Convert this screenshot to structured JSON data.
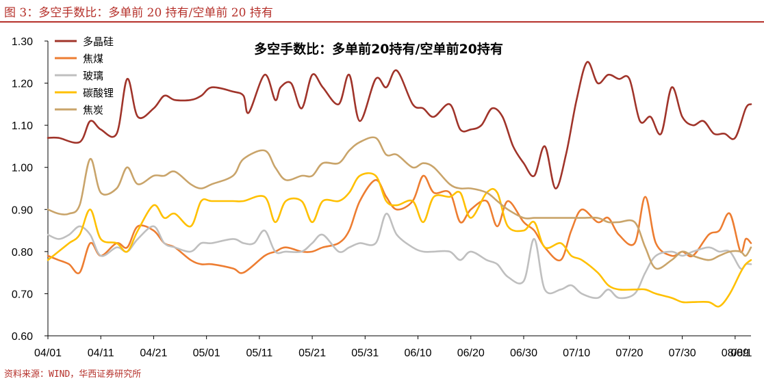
{
  "caption": "图 3：多空手数比：多单前 20 持有/空单前 20 持有",
  "source": "资料来源：WIND，华西证券研究所",
  "chart_data": {
    "type": "line",
    "title": "多空手数比：多单前20持有/空单前20持有",
    "x_tick_labels": [
      "04/01",
      "04/11",
      "04/21",
      "05/01",
      "05/11",
      "05/21",
      "05/31",
      "06/10",
      "06/20",
      "06/30",
      "07/10",
      "07/20",
      "07/30",
      "08/09",
      "08/1"
    ],
    "x_range": [
      "2025-04-01",
      "2025-08-12"
    ],
    "y_ticks": [
      "0.60",
      "0.70",
      "0.80",
      "0.90",
      "1.00",
      "1.10",
      "1.20",
      "1.30"
    ],
    "ylim": [
      0.6,
      1.3
    ],
    "grid": false,
    "legend_position": "top-left",
    "series": [
      {
        "name": "多晶硅",
        "color": "#a0342a",
        "x": [
          "2025-04-01",
          "2025-04-03",
          "2025-04-07",
          "2025-04-09",
          "2025-04-11",
          "2025-04-14",
          "2025-04-16",
          "2025-04-18",
          "2025-04-21",
          "2025-04-23",
          "2025-04-25",
          "2025-04-28",
          "2025-04-30",
          "2025-05-02",
          "2025-05-06",
          "2025-05-08",
          "2025-05-09",
          "2025-05-12",
          "2025-05-14",
          "2025-05-15",
          "2025-05-17",
          "2025-05-19",
          "2025-05-21",
          "2025-05-23",
          "2025-05-26",
          "2025-05-28",
          "2025-05-30",
          "2025-06-02",
          "2025-06-04",
          "2025-06-06",
          "2025-06-09",
          "2025-06-11",
          "2025-06-13",
          "2025-06-16",
          "2025-06-18",
          "2025-06-20",
          "2025-06-22",
          "2025-06-24",
          "2025-06-26",
          "2025-06-28",
          "2025-06-30",
          "2025-07-02",
          "2025-07-04",
          "2025-07-06",
          "2025-07-08",
          "2025-07-10",
          "2025-07-12",
          "2025-07-14",
          "2025-07-16",
          "2025-07-18",
          "2025-07-20",
          "2025-07-22",
          "2025-07-24",
          "2025-07-26",
          "2025-07-28",
          "2025-07-30",
          "2025-08-01",
          "2025-08-03",
          "2025-08-05",
          "2025-08-07",
          "2025-08-09",
          "2025-08-11",
          "2025-08-12"
        ],
        "y": [
          1.07,
          1.07,
          1.06,
          1.11,
          1.09,
          1.08,
          1.21,
          1.12,
          1.14,
          1.17,
          1.16,
          1.16,
          1.17,
          1.19,
          1.18,
          1.17,
          1.13,
          1.22,
          1.16,
          1.19,
          1.2,
          1.14,
          1.22,
          1.19,
          1.15,
          1.22,
          1.11,
          1.21,
          1.19,
          1.23,
          1.15,
          1.14,
          1.12,
          1.15,
          1.09,
          1.09,
          1.1,
          1.14,
          1.12,
          1.05,
          1.01,
          0.98,
          1.05,
          0.95,
          1.03,
          1.16,
          1.25,
          1.2,
          1.22,
          1.21,
          1.21,
          1.11,
          1.12,
          1.08,
          1.19,
          1.12,
          1.1,
          1.11,
          1.08,
          1.08,
          1.07,
          1.14,
          1.15
        ]
      },
      {
        "name": "焦煤",
        "color": "#ed7d31",
        "x": [
          "2025-04-01",
          "2025-04-03",
          "2025-04-05",
          "2025-04-07",
          "2025-04-09",
          "2025-04-11",
          "2025-04-14",
          "2025-04-16",
          "2025-04-18",
          "2025-04-21",
          "2025-04-23",
          "2025-04-25",
          "2025-04-28",
          "2025-04-30",
          "2025-05-02",
          "2025-05-06",
          "2025-05-08",
          "2025-05-12",
          "2025-05-14",
          "2025-05-16",
          "2025-05-19",
          "2025-05-21",
          "2025-05-23",
          "2025-05-26",
          "2025-05-28",
          "2025-05-30",
          "2025-06-02",
          "2025-06-04",
          "2025-06-06",
          "2025-06-09",
          "2025-06-11",
          "2025-06-13",
          "2025-06-16",
          "2025-06-18",
          "2025-06-20",
          "2025-06-23",
          "2025-06-25",
          "2025-06-27",
          "2025-06-30",
          "2025-07-02",
          "2025-07-04",
          "2025-07-07",
          "2025-07-09",
          "2025-07-11",
          "2025-07-14",
          "2025-07-16",
          "2025-07-18",
          "2025-07-21",
          "2025-07-23",
          "2025-07-25",
          "2025-07-28",
          "2025-07-30",
          "2025-08-01",
          "2025-08-04",
          "2025-08-06",
          "2025-08-08",
          "2025-08-10",
          "2025-08-11",
          "2025-08-12"
        ],
        "y": [
          0.79,
          0.78,
          0.77,
          0.75,
          0.82,
          0.79,
          0.82,
          0.81,
          0.86,
          0.85,
          0.82,
          0.81,
          0.78,
          0.77,
          0.77,
          0.76,
          0.75,
          0.79,
          0.8,
          0.81,
          0.8,
          0.8,
          0.81,
          0.82,
          0.85,
          0.92,
          0.97,
          0.93,
          0.9,
          0.92,
          0.98,
          0.94,
          0.94,
          0.87,
          0.9,
          0.92,
          0.86,
          0.92,
          0.87,
          0.85,
          0.81,
          0.78,
          0.85,
          0.9,
          0.87,
          0.88,
          0.84,
          0.82,
          0.93,
          0.82,
          0.79,
          0.8,
          0.79,
          0.84,
          0.85,
          0.89,
          0.8,
          0.83,
          0.82
        ]
      },
      {
        "name": "玻璃",
        "color": "#bfbfbf",
        "x": [
          "2025-04-01",
          "2025-04-03",
          "2025-04-05",
          "2025-04-07",
          "2025-04-09",
          "2025-04-11",
          "2025-04-14",
          "2025-04-16",
          "2025-04-18",
          "2025-04-21",
          "2025-04-23",
          "2025-04-25",
          "2025-04-28",
          "2025-04-30",
          "2025-05-02",
          "2025-05-06",
          "2025-05-08",
          "2025-05-10",
          "2025-05-12",
          "2025-05-14",
          "2025-05-16",
          "2025-05-19",
          "2025-05-21",
          "2025-05-23",
          "2025-05-26",
          "2025-05-28",
          "2025-05-30",
          "2025-06-02",
          "2025-06-04",
          "2025-06-06",
          "2025-06-09",
          "2025-06-11",
          "2025-06-13",
          "2025-06-16",
          "2025-06-18",
          "2025-06-20",
          "2025-06-23",
          "2025-06-25",
          "2025-06-27",
          "2025-06-30",
          "2025-07-02",
          "2025-07-04",
          "2025-07-07",
          "2025-07-09",
          "2025-07-11",
          "2025-07-14",
          "2025-07-16",
          "2025-07-18",
          "2025-07-21",
          "2025-07-23",
          "2025-07-25",
          "2025-07-28",
          "2025-07-30",
          "2025-08-01",
          "2025-08-04",
          "2025-08-06",
          "2025-08-08",
          "2025-08-10",
          "2025-08-11",
          "2025-08-12"
        ],
        "y": [
          0.84,
          0.83,
          0.84,
          0.86,
          0.84,
          0.79,
          0.81,
          0.8,
          0.83,
          0.86,
          0.82,
          0.81,
          0.8,
          0.82,
          0.82,
          0.83,
          0.82,
          0.82,
          0.85,
          0.8,
          0.8,
          0.8,
          0.82,
          0.84,
          0.8,
          0.81,
          0.82,
          0.82,
          0.89,
          0.84,
          0.81,
          0.8,
          0.8,
          0.8,
          0.78,
          0.8,
          0.78,
          0.77,
          0.74,
          0.73,
          0.83,
          0.71,
          0.71,
          0.72,
          0.7,
          0.69,
          0.71,
          0.69,
          0.7,
          0.75,
          0.79,
          0.8,
          0.79,
          0.8,
          0.81,
          0.8,
          0.8,
          0.76,
          0.77,
          0.77
        ]
      },
      {
        "name": "碳酸锂",
        "color": "#ffc000",
        "x": [
          "2025-04-01",
          "2025-04-03",
          "2025-04-05",
          "2025-04-07",
          "2025-04-09",
          "2025-04-11",
          "2025-04-14",
          "2025-04-16",
          "2025-04-18",
          "2025-04-21",
          "2025-04-23",
          "2025-04-25",
          "2025-04-28",
          "2025-04-30",
          "2025-05-02",
          "2025-05-06",
          "2025-05-08",
          "2025-05-12",
          "2025-05-14",
          "2025-05-16",
          "2025-05-19",
          "2025-05-21",
          "2025-05-23",
          "2025-05-26",
          "2025-05-28",
          "2025-05-30",
          "2025-06-02",
          "2025-06-04",
          "2025-06-06",
          "2025-06-09",
          "2025-06-11",
          "2025-06-13",
          "2025-06-16",
          "2025-06-18",
          "2025-06-20",
          "2025-06-23",
          "2025-06-25",
          "2025-06-27",
          "2025-06-30",
          "2025-07-02",
          "2025-07-04",
          "2025-07-07",
          "2025-07-09",
          "2025-07-11",
          "2025-07-14",
          "2025-07-16",
          "2025-07-18",
          "2025-07-21",
          "2025-07-23",
          "2025-07-25",
          "2025-07-28",
          "2025-07-30",
          "2025-08-01",
          "2025-08-04",
          "2025-08-06",
          "2025-08-08",
          "2025-08-10",
          "2025-08-11",
          "2025-08-12"
        ],
        "y": [
          0.78,
          0.8,
          0.82,
          0.84,
          0.9,
          0.83,
          0.82,
          0.8,
          0.85,
          0.91,
          0.88,
          0.89,
          0.86,
          0.92,
          0.92,
          0.92,
          0.92,
          0.93,
          0.87,
          0.92,
          0.92,
          0.87,
          0.92,
          0.92,
          0.94,
          0.98,
          0.98,
          0.92,
          0.91,
          0.92,
          0.87,
          0.93,
          0.93,
          0.94,
          0.88,
          0.94,
          0.94,
          0.86,
          0.85,
          0.87,
          0.81,
          0.82,
          0.79,
          0.78,
          0.75,
          0.72,
          0.71,
          0.71,
          0.71,
          0.7,
          0.69,
          0.68,
          0.68,
          0.68,
          0.67,
          0.7,
          0.75,
          0.77,
          0.78
        ]
      },
      {
        "name": "焦炭",
        "color": "#c9a46a",
        "x": [
          "2025-04-01",
          "2025-04-03",
          "2025-04-05",
          "2025-04-07",
          "2025-04-09",
          "2025-04-11",
          "2025-04-14",
          "2025-04-16",
          "2025-04-18",
          "2025-04-21",
          "2025-04-23",
          "2025-04-25",
          "2025-04-28",
          "2025-04-30",
          "2025-05-02",
          "2025-05-06",
          "2025-05-08",
          "2025-05-12",
          "2025-05-14",
          "2025-05-16",
          "2025-05-19",
          "2025-05-21",
          "2025-05-23",
          "2025-05-26",
          "2025-05-28",
          "2025-05-30",
          "2025-06-02",
          "2025-06-04",
          "2025-06-06",
          "2025-06-09",
          "2025-06-11",
          "2025-06-13",
          "2025-06-16",
          "2025-06-18",
          "2025-06-20",
          "2025-06-23",
          "2025-06-25",
          "2025-06-27",
          "2025-06-30",
          "2025-07-02",
          "2025-07-04",
          "2025-07-07",
          "2025-07-09",
          "2025-07-11",
          "2025-07-14",
          "2025-07-16",
          "2025-07-18",
          "2025-07-21",
          "2025-07-23",
          "2025-07-25",
          "2025-07-28",
          "2025-07-30",
          "2025-08-01",
          "2025-08-04",
          "2025-08-06",
          "2025-08-08",
          "2025-08-10",
          "2025-08-11",
          "2025-08-12"
        ],
        "y": [
          0.9,
          0.89,
          0.89,
          0.91,
          1.02,
          0.94,
          0.95,
          1.0,
          0.96,
          0.98,
          0.98,
          0.99,
          0.96,
          0.95,
          0.96,
          0.98,
          1.02,
          1.04,
          1.0,
          0.97,
          0.98,
          0.98,
          1.01,
          1.01,
          1.04,
          1.06,
          1.07,
          1.03,
          1.03,
          1.0,
          1.01,
          1.0,
          0.96,
          0.95,
          0.95,
          0.94,
          0.92,
          0.9,
          0.88,
          0.88,
          0.88,
          0.88,
          0.88,
          0.88,
          0.88,
          0.87,
          0.87,
          0.87,
          0.81,
          0.76,
          0.78,
          0.8,
          0.79,
          0.78,
          0.79,
          0.8,
          0.8,
          0.79,
          0.81
        ]
      }
    ]
  }
}
